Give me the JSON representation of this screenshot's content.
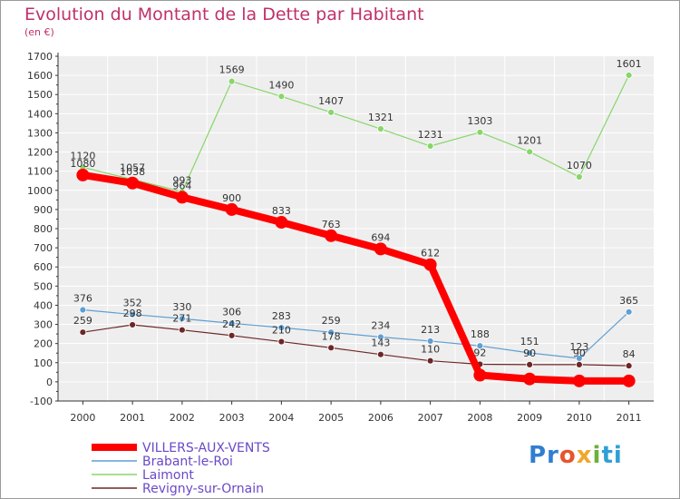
{
  "chart_data": {
    "type": "line",
    "title": "Evolution du Montant de la Dette par Habitant",
    "subtitle": "(en €)",
    "x": [
      "2000",
      "2001",
      "2002",
      "2003",
      "2004",
      "2005",
      "2006",
      "2007",
      "2008",
      "2009",
      "2010",
      "2011"
    ],
    "ylim": [
      -100,
      1700
    ],
    "yticks": [
      -100,
      0,
      100,
      200,
      300,
      400,
      500,
      600,
      700,
      800,
      900,
      1000,
      1100,
      1200,
      1300,
      1400,
      1500,
      1600,
      1700
    ],
    "grid": true,
    "legend_position": "bottom-left",
    "series": [
      {
        "name": "VILLERS-AUX-VENTS",
        "color": "#ff0000",
        "values": [
          1080,
          1038,
          964,
          900,
          833,
          763,
          694,
          612,
          35,
          15,
          5,
          5
        ],
        "labels": [
          "1080",
          "1038",
          "964",
          "900",
          "833",
          "763",
          "694",
          "612",
          "",
          "",
          "",
          ""
        ]
      },
      {
        "name": "Brabant-le-Roi",
        "color": "#5f9fd3",
        "values": [
          376,
          352,
          330,
          306,
          283,
          259,
          234,
          213,
          188,
          151,
          123,
          365
        ],
        "labels": [
          "376",
          "352",
          "330",
          "306",
          "283",
          "259",
          "234",
          "213",
          "188",
          "151",
          "123",
          "365"
        ]
      },
      {
        "name": "Laimont",
        "color": "#88d66a",
        "values": [
          1120,
          1057,
          993,
          1569,
          1490,
          1407,
          1321,
          1231,
          1303,
          1201,
          1070,
          1601
        ],
        "labels": [
          "1120",
          "1057",
          "993",
          "1569",
          "1490",
          "1407",
          "1321",
          "1231",
          "1303",
          "1201",
          "1070",
          "1601"
        ]
      },
      {
        "name": "Revigny-sur-Ornain",
        "color": "#6e2626",
        "values": [
          259,
          298,
          271,
          242,
          210,
          178,
          143,
          110,
          92,
          90,
          90,
          84
        ],
        "labels": [
          "259",
          "298",
          "271",
          "242",
          "210",
          "178",
          "143",
          "110",
          "92",
          "90",
          "90",
          "84"
        ]
      }
    ]
  },
  "brand": {
    "logo": [
      "Pr",
      "o",
      "x",
      "i",
      "ti"
    ]
  }
}
